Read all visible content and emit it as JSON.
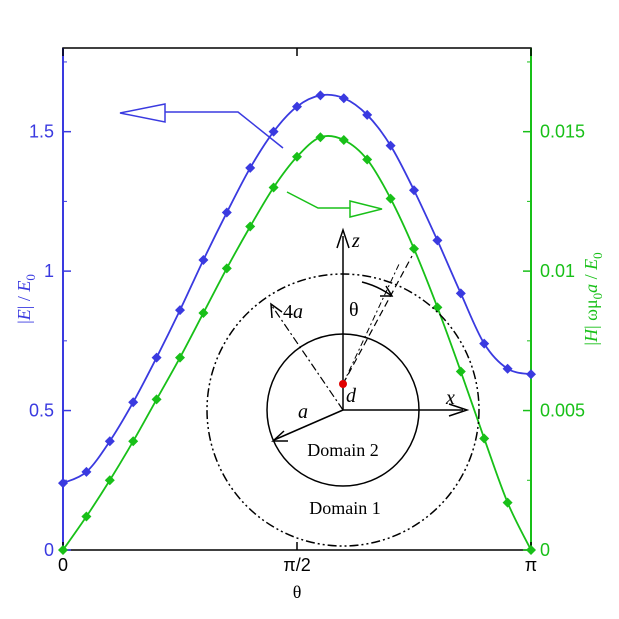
{
  "chart_data": {
    "type": "line",
    "xlabel": "θ",
    "x_ticks": [
      {
        "value": 0,
        "label": "0"
      },
      {
        "value": 1.5708,
        "label": "π/2"
      },
      {
        "value": 3.1416,
        "label": "π"
      }
    ],
    "xlim": [
      0,
      3.1416
    ],
    "left_axis": {
      "label_parts": [
        "|",
        "E",
        "| / ",
        "E",
        "0"
      ],
      "ylim": [
        0,
        1.8
      ],
      "ticks": [
        {
          "value": 0,
          "label": "0"
        },
        {
          "value": 0.5,
          "label": "0.5"
        },
        {
          "value": 1,
          "label": "1"
        },
        {
          "value": 1.5,
          "label": "1.5"
        }
      ],
      "color": "#3a3ae0"
    },
    "right_axis": {
      "label_parts": [
        "|",
        "H",
        "| ωμ",
        "0",
        "a",
        " / ",
        "E",
        "0"
      ],
      "ylim": [
        0,
        0.018
      ],
      "ticks": [
        {
          "value": 0,
          "label": "0"
        },
        {
          "value": 0.005,
          "label": "0.005"
        },
        {
          "value": 0.01,
          "label": "0.01"
        },
        {
          "value": 0.015,
          "label": "0.015"
        }
      ],
      "color": "#18c018"
    },
    "series": [
      {
        "axis": "left",
        "color": "#3a3ae0",
        "marker": "diamond",
        "x": [
          0.0,
          0.1571,
          0.3142,
          0.4712,
          0.6283,
          0.7854,
          0.9425,
          1.0996,
          1.2566,
          1.4137,
          1.5708,
          1.7279,
          1.885,
          2.042,
          2.1991,
          2.3562,
          2.5133,
          2.6704,
          2.8274,
          2.9845,
          3.1416
        ],
        "values": [
          0.24,
          0.28,
          0.39,
          0.53,
          0.69,
          0.86,
          1.04,
          1.21,
          1.37,
          1.5,
          1.59,
          1.63,
          1.62,
          1.56,
          1.45,
          1.29,
          1.11,
          0.92,
          0.74,
          0.65,
          0.63
        ]
      },
      {
        "axis": "right",
        "color": "#18c018",
        "marker": "diamond",
        "x": [
          0.0,
          0.1571,
          0.3142,
          0.4712,
          0.6283,
          0.7854,
          0.9425,
          1.0996,
          1.2566,
          1.4137,
          1.5708,
          1.7279,
          1.885,
          2.042,
          2.1991,
          2.3562,
          2.5133,
          2.6704,
          2.8274,
          2.9845,
          3.1416
        ],
        "values": [
          0.0,
          0.0012,
          0.0025,
          0.0039,
          0.0054,
          0.0069,
          0.0085,
          0.0101,
          0.0116,
          0.013,
          0.0141,
          0.0148,
          0.0147,
          0.014,
          0.0126,
          0.0108,
          0.0087,
          0.0064,
          0.004,
          0.0017,
          0.0
        ]
      }
    ]
  },
  "inset_diagram": {
    "axis_z_label": "z",
    "axis_x_label": "x",
    "outer_radius_label_coef": "4",
    "outer_radius_label_var": "a",
    "inner_radius_label": "a",
    "offset_label": "d",
    "angle_label": "θ",
    "inner_domain_label": "Domain 2",
    "outer_domain_label": "Domain 1"
  }
}
